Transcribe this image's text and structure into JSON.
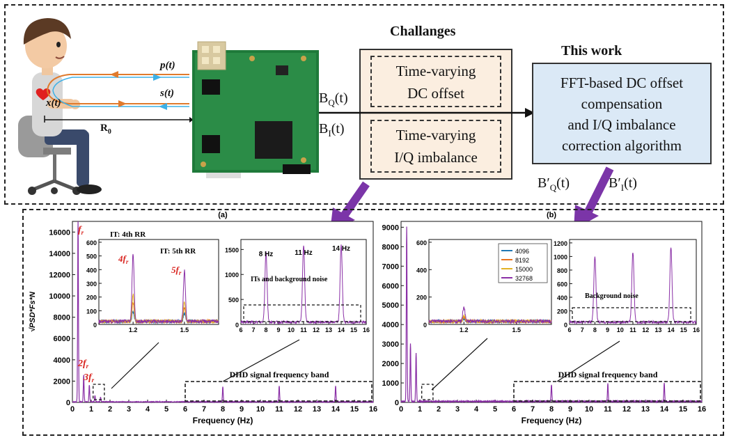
{
  "top": {
    "labels": {
      "p": "p(t)",
      "s": "s(t)",
      "x": "x(t)",
      "r0": "R",
      "r0_sub": "0"
    },
    "signals_in": {
      "bq": "B",
      "bq_sub": "Q",
      "bq_tail": "(t)",
      "bi": "B",
      "bi_sub": "I",
      "bi_tail": "(t)"
    },
    "challenges": {
      "title": "Challanges",
      "box1_line1": "Time-varying",
      "box1_line2": "DC offset",
      "box2_line1": "Time-varying",
      "box2_line2": "I/Q imbalance"
    },
    "this_work": {
      "title": "This work",
      "line1": "FFT-based DC offset",
      "line2": "compensation",
      "line3": "and I/Q imbalance",
      "line4": "correction algorithm"
    },
    "signals_out": {
      "bq": "B′",
      "bq_sub": "Q",
      "bq_tail": "(t)",
      "bi": "B′",
      "bi_sub": "I",
      "bi_tail": "(t)"
    }
  },
  "colors": {
    "accent_purple": "#7b35a8",
    "signal_orange": "#e07a2c",
    "signal_blue": "#3db0e6",
    "challenge_fill": "#fbeee0",
    "thiswork_fill": "#dbe9f6",
    "annot_red": "#d9241f",
    "series_4096": "#1f77b4",
    "series_8192": "#e8731e",
    "series_15000": "#e3b224",
    "series_32768": "#8a2fa6"
  },
  "chart_data": [
    {
      "id": "a",
      "type": "line",
      "title": "(a)",
      "xlabel": "Frequency (Hz)",
      "ylabel": "√PSD*Fs*N",
      "xlim": [
        0,
        16
      ],
      "ylim": [
        0,
        17000
      ],
      "xticks": [
        0,
        1,
        2,
        3,
        4,
        5,
        6,
        7,
        8,
        9,
        10,
        11,
        12,
        13,
        14,
        15,
        16
      ],
      "yticks": [
        0,
        2000,
        4000,
        6000,
        8000,
        10000,
        12000,
        14000,
        16000
      ],
      "peaks": [
        {
          "x": 0.3,
          "y": 17000
        },
        {
          "x": 0.6,
          "y": 2500
        },
        {
          "x": 0.9,
          "y": 1600
        },
        {
          "x": 1.2,
          "y": 600
        },
        {
          "x": 1.5,
          "y": 450
        },
        {
          "x": 8,
          "y": 1400
        },
        {
          "x": 11,
          "y": 1500
        },
        {
          "x": 14,
          "y": 1500
        }
      ],
      "annotations": {
        "fr": "f",
        "fr_sub": "r",
        "f2": "2f",
        "f2_sub": "r",
        "f3": "3f",
        "f3_sub": "r",
        "band_label": "DHD signal frequency band"
      },
      "inset_low": {
        "xlim": [
          1.0,
          1.7
        ],
        "ylim": [
          0,
          620
        ],
        "xticks": [
          1.2,
          1.5
        ],
        "yticks": [
          0,
          100,
          200,
          300,
          400,
          500,
          600
        ],
        "label_4": "IT: 4th RR",
        "label_5": "IT: 5th RR",
        "f4": "4f",
        "f4_sub": "r",
        "f5": "5f",
        "f5_sub": "r",
        "peaks": [
          {
            "x": 1.2,
            "y": 500
          },
          {
            "x": 1.5,
            "y": 370
          }
        ]
      },
      "inset_high": {
        "xlim": [
          6,
          16
        ],
        "ylim": [
          0,
          1700
        ],
        "xticks": [
          6,
          7,
          8,
          9,
          10,
          11,
          12,
          13,
          14,
          15,
          16
        ],
        "yticks": [
          0,
          500,
          1000,
          1500
        ],
        "hz8": "8 Hz",
        "hz11": "11 Hz",
        "hz14": "14 Hz",
        "note": "ITs and background noise",
        "peaks": [
          {
            "x": 8,
            "y": 1420
          },
          {
            "x": 11,
            "y": 1550
          },
          {
            "x": 14,
            "y": 1560
          }
        ]
      }
    },
    {
      "id": "b",
      "type": "line",
      "title": "(b)",
      "xlabel": "Frequency (Hz)",
      "xlim": [
        0,
        16
      ],
      "ylim": [
        0,
        9300
      ],
      "xticks": [
        0,
        1,
        2,
        3,
        4,
        5,
        6,
        7,
        8,
        9,
        10,
        11,
        12,
        13,
        14,
        15,
        16
      ],
      "yticks": [
        0,
        1000,
        2000,
        3000,
        4000,
        5000,
        6000,
        7000,
        8000,
        9000
      ],
      "peaks": [
        {
          "x": 0.3,
          "y": 9000
        },
        {
          "x": 0.5,
          "y": 3000
        },
        {
          "x": 0.8,
          "y": 2500
        },
        {
          "x": 8,
          "y": 850
        },
        {
          "x": 11,
          "y": 900
        },
        {
          "x": 14,
          "y": 950
        }
      ],
      "annotations": {
        "band_label": "DHD signal frequency band"
      },
      "inset_low": {
        "xlim": [
          1.0,
          1.7
        ],
        "ylim": [
          0,
          620
        ],
        "xticks": [
          1.2,
          1.5
        ],
        "yticks": [
          0,
          200,
          400,
          600
        ],
        "legend": [
          "4096",
          "8192",
          "15000",
          "32768"
        ],
        "peaks": [
          {
            "x": 1.2,
            "y": 110
          }
        ]
      },
      "inset_high": {
        "xlim": [
          6,
          16
        ],
        "ylim": [
          0,
          1250
        ],
        "xticks": [
          6,
          7,
          8,
          9,
          10,
          11,
          12,
          13,
          14,
          15,
          16
        ],
        "yticks": [
          0,
          200,
          400,
          600,
          800,
          1000,
          1200
        ],
        "note": "Background noise",
        "peaks": [
          {
            "x": 8,
            "y": 950
          },
          {
            "x": 11,
            "y": 1030
          },
          {
            "x": 14,
            "y": 1090
          }
        ]
      }
    }
  ]
}
